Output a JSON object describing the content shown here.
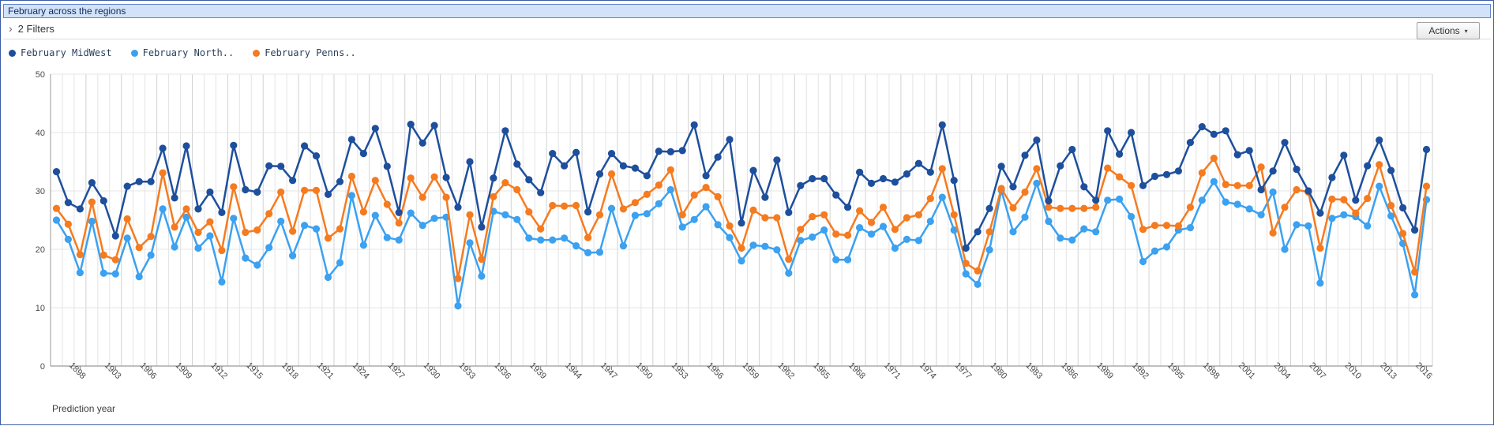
{
  "window": {
    "title": "February across the regions"
  },
  "filter_bar": {
    "chevron_icon": "›",
    "label": "2 Filters"
  },
  "toolbar": {
    "actions_label": "Actions",
    "caret_icon": "▾"
  },
  "colors": {
    "window_border": "#3d5ca6",
    "titlebar_bg": "#d2e2f8",
    "titlebar_border": "#6381cd",
    "grid": "#e4e4e4",
    "grid_strong": "#d2d2d2",
    "axis_baseline": "#808080",
    "axis_left": "#9a9a9a",
    "axis_text": "#4a4a4a",
    "series_midwest": "#1e4f9c",
    "series_northeast": "#3ba1f0",
    "series_penns": "#f57b20"
  },
  "chart_data": {
    "type": "line",
    "title": "February across the regions",
    "xlabel": "Prediction year",
    "ylim": [
      0,
      50
    ],
    "yticks": [
      0,
      10,
      20,
      30,
      40,
      50
    ],
    "grid": true,
    "legend_position": "top-left",
    "x": [
      1896,
      1897,
      1898,
      1901,
      1902,
      1903,
      1904,
      1905,
      1906,
      1907,
      1908,
      1909,
      1910,
      1911,
      1912,
      1913,
      1914,
      1915,
      1916,
      1917,
      1918,
      1919,
      1920,
      1921,
      1922,
      1923,
      1924,
      1925,
      1926,
      1927,
      1928,
      1929,
      1930,
      1931,
      1932,
      1933,
      1934,
      1935,
      1936,
      1937,
      1938,
      1939,
      1942,
      1943,
      1944,
      1945,
      1946,
      1947,
      1948,
      1949,
      1950,
      1951,
      1952,
      1953,
      1954,
      1955,
      1956,
      1957,
      1958,
      1959,
      1960,
      1961,
      1962,
      1963,
      1964,
      1965,
      1966,
      1967,
      1968,
      1969,
      1970,
      1971,
      1972,
      1973,
      1974,
      1975,
      1976,
      1977,
      1978,
      1979,
      1980,
      1981,
      1982,
      1983,
      1984,
      1985,
      1986,
      1987,
      1988,
      1989,
      1990,
      1991,
      1992,
      1993,
      1994,
      1995,
      1996,
      1997,
      1998,
      1999,
      2000,
      2001,
      2002,
      2003,
      2004,
      2005,
      2006,
      2007,
      2008,
      2009,
      2010,
      2011,
      2012,
      2013,
      2014,
      2015,
      2016
    ],
    "x_tick_labels": [
      "1898",
      "1903",
      "1906",
      "1909",
      "1912",
      "1915",
      "1918",
      "1921",
      "1924",
      "1927",
      "1930",
      "1933",
      "1936",
      "1939",
      "1944",
      "1947",
      "1950",
      "1953",
      "1956",
      "1959",
      "1962",
      "1965",
      "1968",
      "1971",
      "1974",
      "1977",
      "1980",
      "1983",
      "1986",
      "1989",
      "1992",
      "1995",
      "1998",
      "2001",
      "2004",
      "2007",
      "2010",
      "2013",
      "2016"
    ],
    "x_tick_first_index": 2,
    "x_tick_step": 3,
    "series": [
      {
        "name": "February MidWest",
        "color": "#1e4f9c",
        "values": [
          33.3,
          28,
          26.9,
          31.4,
          28.3,
          22.3,
          30.8,
          31.6,
          31.6,
          37.3,
          28.8,
          37.7,
          26.9,
          29.8,
          26.3,
          37.8,
          30.2,
          29.8,
          34.3,
          34.2,
          31.8,
          37.7,
          36,
          29.4,
          31.6,
          38.8,
          36.4,
          40.7,
          34.2,
          26.3,
          41.4,
          38.2,
          41.2,
          32.3,
          27.2,
          35,
          23.8,
          32.2,
          40.3,
          34.6,
          31.9,
          29.7,
          36.4,
          34.3,
          36.6,
          26.4,
          32.9,
          36.4,
          34.3,
          33.9,
          32.6,
          36.8,
          36.7,
          36.9,
          41.3,
          32.6,
          35.8,
          38.8,
          24.5,
          33.5,
          28.9,
          35.3,
          26.3,
          30.9,
          32.1,
          32.1,
          29.3,
          27.2,
          33.2,
          31.3,
          32.1,
          31.5,
          32.9,
          34.7,
          33.2,
          41.3,
          31.8,
          20.2,
          23,
          27,
          34.2,
          30.7,
          36.1,
          38.7,
          28.3,
          34.3,
          37.1,
          30.7,
          28.4,
          40.3,
          36.3,
          40,
          30.9,
          32.5,
          32.8,
          33.4,
          38.3,
          41,
          39.7,
          40.3,
          36.2,
          36.9,
          30.2,
          33.4,
          38.3,
          33.7,
          30,
          26.2,
          32.3,
          36.1,
          28.4,
          34.3,
          38.7,
          33.5,
          27.1,
          23.3,
          37.1
        ]
      },
      {
        "name": "February North..",
        "color": "#3ba1f0",
        "values": [
          25,
          21.7,
          16,
          24.8,
          15.9,
          15.8,
          21.9,
          15.3,
          19,
          26.9,
          20.4,
          25.5,
          20.2,
          22.3,
          14.4,
          25.3,
          18.5,
          17.3,
          20.3,
          24.8,
          18.9,
          24.1,
          23.5,
          15.2,
          17.7,
          29.2,
          20.7,
          25.8,
          22,
          21.6,
          26.2,
          24.1,
          25.3,
          25.5,
          10.3,
          21.1,
          15.4,
          26.5,
          25.9,
          25.1,
          21.9,
          21.6,
          21.6,
          21.9,
          20.6,
          19.4,
          19.5,
          27,
          20.6,
          25.8,
          26.1,
          27.8,
          30.2,
          23.8,
          25.1,
          27.3,
          24.2,
          22,
          18,
          20.7,
          20.5,
          19.9,
          15.9,
          21.5,
          22.1,
          23.3,
          18.2,
          18.2,
          23.7,
          22.6,
          23.9,
          20.2,
          21.7,
          21.5,
          24.8,
          28.9,
          23.3,
          15.8,
          14,
          19.9,
          30.1,
          23,
          25.5,
          31.3,
          24.8,
          21.9,
          21.6,
          23.5,
          23,
          28.4,
          28.6,
          25.6,
          17.9,
          19.7,
          20.4,
          23.3,
          23.7,
          28.4,
          31.6,
          28.1,
          27.7,
          26.9,
          25.9,
          29.8,
          20,
          24.2,
          24,
          14.2,
          25.3,
          25.9,
          25.6,
          24,
          30.8,
          25.7,
          21,
          12.2,
          28.5
        ]
      },
      {
        "name": "February Penns..",
        "color": "#f57b20",
        "values": [
          27,
          24.3,
          19.1,
          28.1,
          19,
          18.2,
          25.2,
          20.3,
          22.2,
          33.1,
          23.8,
          26.9,
          22.9,
          24.7,
          19.8,
          30.7,
          22.9,
          23.3,
          26.1,
          29.8,
          23.1,
          30.1,
          30.1,
          21.9,
          23.5,
          32.5,
          26.4,
          31.8,
          27.7,
          24.5,
          32.2,
          28.9,
          32.4,
          28.9,
          15,
          25.9,
          18.3,
          29,
          31.4,
          30.2,
          26.4,
          23.5,
          27.5,
          27.4,
          27.5,
          22,
          25.9,
          32.9,
          26.9,
          28,
          29.4,
          31,
          33.6,
          25.9,
          29.3,
          30.6,
          29,
          24,
          20.2,
          26.7,
          25.4,
          25.4,
          18.3,
          23.4,
          25.6,
          25.9,
          22.6,
          22.4,
          26.6,
          24.6,
          27.2,
          23.4,
          25.4,
          25.9,
          28.7,
          33.8,
          25.9,
          17.6,
          16.3,
          23,
          30.4,
          27.1,
          29.8,
          33.8,
          27.2,
          27,
          27,
          27,
          27.2,
          33.9,
          32.4,
          30.9,
          23.4,
          24.1,
          24.1,
          24,
          27.2,
          33.1,
          35.6,
          31.1,
          30.9,
          30.9,
          34.1,
          22.8,
          27.2,
          30.2,
          29.8,
          20.2,
          28.6,
          28.5,
          26.2,
          28.7,
          34.5,
          27.5,
          22.7,
          16.1,
          30.8
        ]
      }
    ]
  }
}
